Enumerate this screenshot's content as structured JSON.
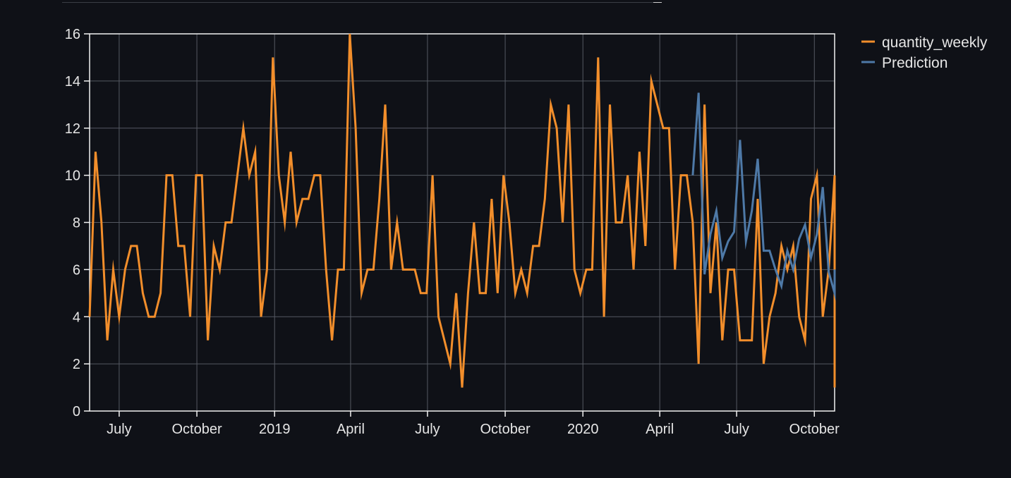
{
  "chart_data": {
    "type": "line",
    "xlim": [
      "2018-05-27",
      "2020-10-25"
    ],
    "ylim": [
      0,
      16
    ],
    "y_ticks": [
      0,
      2,
      4,
      6,
      8,
      10,
      12,
      14,
      16
    ],
    "x_ticks": [
      {
        "date": "2018-07-01",
        "label": "July"
      },
      {
        "date": "2018-10-01",
        "label": "October"
      },
      {
        "date": "2019-01-01",
        "label": "2019"
      },
      {
        "date": "2019-04-01",
        "label": "April"
      },
      {
        "date": "2019-07-01",
        "label": "July"
      },
      {
        "date": "2019-10-01",
        "label": "October"
      },
      {
        "date": "2020-01-01",
        "label": "2020"
      },
      {
        "date": "2020-04-01",
        "label": "April"
      },
      {
        "date": "2020-07-01",
        "label": "July"
      },
      {
        "date": "2020-10-01",
        "label": "October"
      }
    ],
    "grid": true,
    "legend_position": "top-right",
    "series": [
      {
        "name": "quantity_weekly",
        "color": "#f28e2b",
        "start": "2018-05-27",
        "interval_days": 7,
        "values": [
          4,
          11,
          8,
          3,
          6,
          4,
          6,
          7,
          7,
          5,
          4,
          4,
          5,
          10,
          10,
          7,
          7,
          4,
          10,
          10,
          3,
          7,
          6,
          8,
          8,
          10,
          12,
          10,
          11,
          4,
          6,
          15,
          10,
          8,
          11,
          8,
          9,
          9,
          10,
          10,
          6,
          3,
          6,
          6,
          16,
          12,
          5,
          6,
          6,
          9,
          13,
          6,
          8,
          6,
          6,
          6,
          5,
          5,
          10,
          4,
          3,
          2,
          5,
          1,
          5,
          8,
          5,
          5,
          9,
          5,
          10,
          8,
          5,
          6,
          5,
          7,
          7,
          9,
          13,
          12,
          8,
          13,
          6,
          5,
          6,
          6,
          15,
          4,
          13,
          8,
          8,
          10,
          6,
          11,
          7,
          14,
          13,
          12,
          12,
          6,
          10,
          10,
          8,
          2,
          13,
          5,
          8,
          3,
          6,
          6,
          3,
          3,
          3,
          9,
          2,
          4,
          5,
          7,
          6,
          7,
          4,
          3,
          9,
          10,
          4,
          6,
          10,
          1
        ]
      },
      {
        "name": "Prediction",
        "color": "#4e79a7",
        "start": "2020-05-10",
        "interval_days": 7,
        "values": [
          10,
          13.5,
          5.8,
          7.5,
          8.5,
          6.5,
          7.2,
          7.6,
          11.5,
          7.2,
          8.5,
          10.7,
          6.8,
          6.8,
          6.0,
          5.3,
          6.8,
          6.0,
          7.3,
          7.9,
          6.5,
          7.5,
          9.5,
          5.9,
          5.0,
          5.2,
          6.0
        ]
      }
    ]
  }
}
